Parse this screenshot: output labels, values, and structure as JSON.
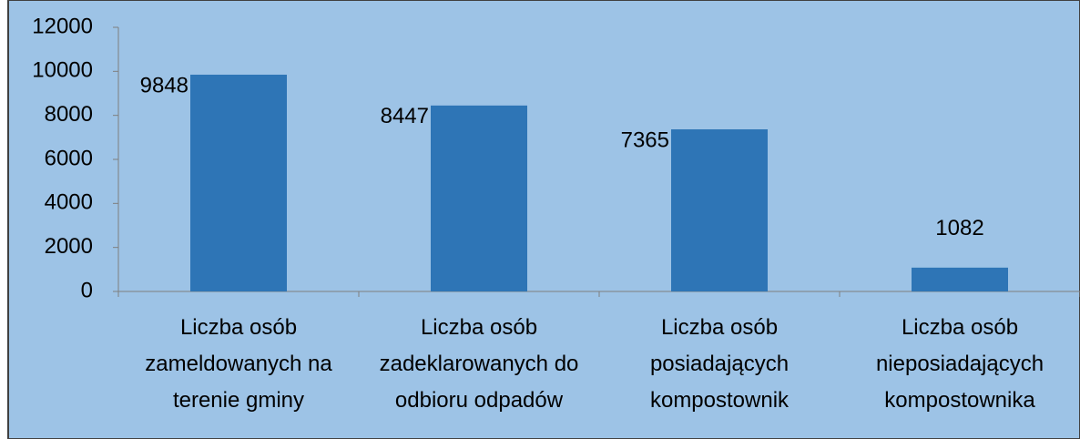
{
  "chart_data": {
    "type": "bar",
    "categories": [
      "Liczba osób zameldowanych na terenie gminy",
      "Liczba osób zadeklarowanych do odbioru odpadów",
      "Liczba osób posiadających kompostownik",
      "Liczba osób nieposiadających kompostownika"
    ],
    "values": [
      9848,
      8447,
      7365,
      1082
    ],
    "color": "#2e75b6",
    "background": "#9dc3e6",
    "ylim": [
      0,
      12000
    ],
    "yticks": [
      0,
      2000,
      4000,
      6000,
      8000,
      10000,
      12000
    ],
    "grid": false
  }
}
